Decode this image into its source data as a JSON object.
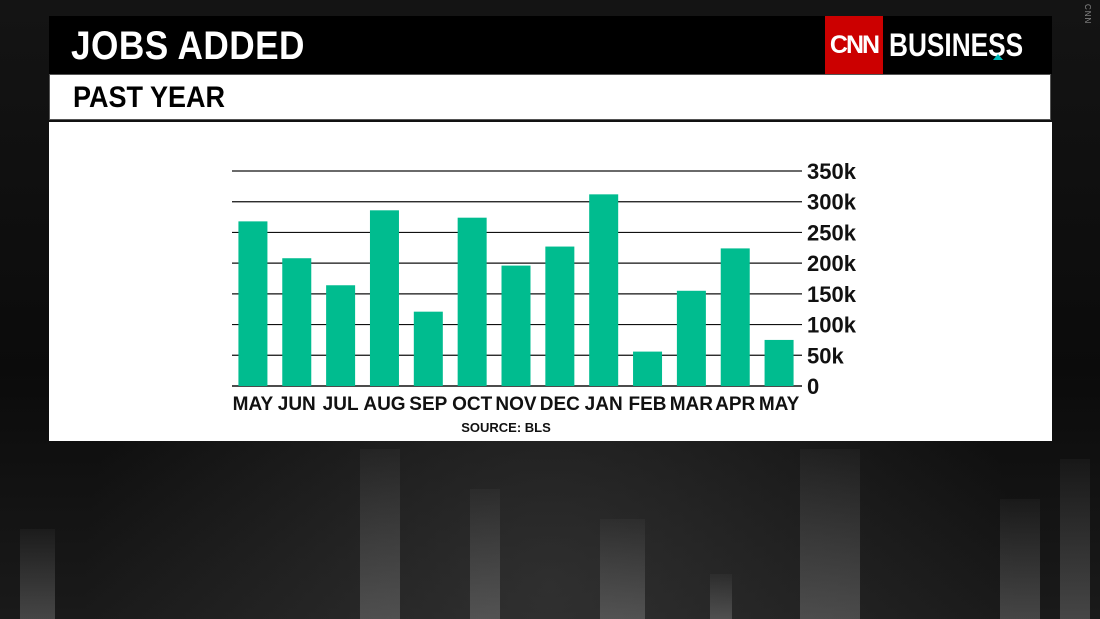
{
  "header": {
    "title": "JOBS ADDED",
    "subtitle": "PAST YEAR",
    "brand_logo": "CNN",
    "brand_name": "BUSINESS",
    "watermark": "CNN"
  },
  "colors": {
    "bar": "#00bc8f",
    "brand_red": "#cc0000",
    "accent": "#00b3b3"
  },
  "chart_data": {
    "type": "bar",
    "categories": [
      "MAY",
      "JUN",
      "JUL",
      "AUG",
      "SEP",
      "OCT",
      "NOV",
      "DEC",
      "JAN",
      "FEB",
      "MAR",
      "APR",
      "MAY"
    ],
    "values": [
      268,
      208,
      164,
      286,
      121,
      274,
      196,
      227,
      312,
      56,
      155,
      224,
      75
    ],
    "y_ticks": [
      "0",
      "50k",
      "100k",
      "150k",
      "200k",
      "250k",
      "300k",
      "350k"
    ],
    "ylim": [
      0,
      350
    ],
    "y_unit": "thousands",
    "y_axis_side": "right",
    "grid": true,
    "source": "SOURCE: BLS",
    "title": "JOBS ADDED",
    "subtitle": "PAST YEAR"
  }
}
